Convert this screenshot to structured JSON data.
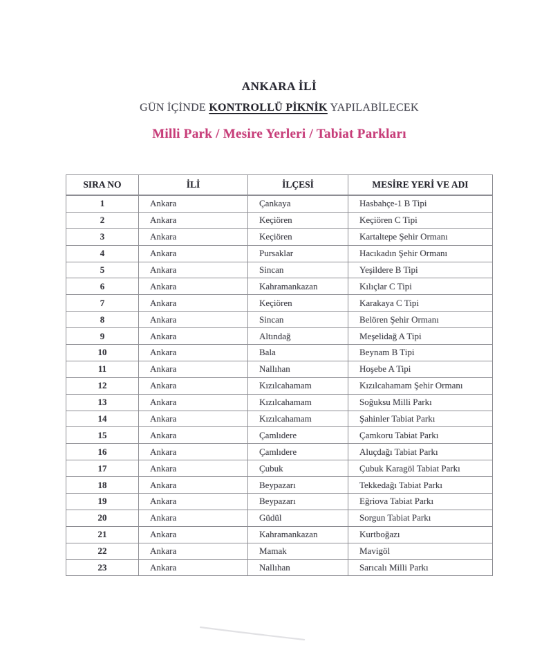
{
  "document": {
    "title": "ANKARA İLİ",
    "subtitle": {
      "prefix": "GÜN İÇİNDE ",
      "emphasis": "KONTROLLÜ PİKNİK",
      "suffix": " YAPILABİLECEK"
    },
    "subheading": "Milli Park / Mesire Yerleri / Tabiat Parkları",
    "colors": {
      "subheading_pink": "#c73d79",
      "body_text": "#43434b",
      "header_text": "#26262e",
      "border_gray": "#8d8d93"
    }
  },
  "table": {
    "columns": [
      "SIRA NO",
      "İLİ",
      "İLÇESİ",
      "MESİRE YERİ VE ADI"
    ],
    "rows": [
      [
        "1",
        "Ankara",
        "Çankaya",
        "Hasbahçe-1 B Tipi"
      ],
      [
        "2",
        "Ankara",
        "Keçiören",
        "Keçiören C Tipi"
      ],
      [
        "3",
        "Ankara",
        "Keçiören",
        "Kartaltepe Şehir Ormanı"
      ],
      [
        "4",
        "Ankara",
        "Pursaklar",
        "Hacıkadın Şehir Ormanı"
      ],
      [
        "5",
        "Ankara",
        "Sincan",
        "Yeşildere B Tipi"
      ],
      [
        "6",
        "Ankara",
        "Kahramankazan",
        "Kılıçlar C Tipi"
      ],
      [
        "7",
        "Ankara",
        "Keçiören",
        "Karakaya C Tipi"
      ],
      [
        "8",
        "Ankara",
        "Sincan",
        "Belören Şehir Ormanı"
      ],
      [
        "9",
        "Ankara",
        "Altındağ",
        "Meşelidağ A Tipi"
      ],
      [
        "10",
        "Ankara",
        "Bala",
        "Beynam B Tipi"
      ],
      [
        "11",
        "Ankara",
        "Nallıhan",
        "Hoşebe A Tipi"
      ],
      [
        "12",
        "Ankara",
        "Kızılcahamam",
        "Kızılcahamam Şehir Ormanı"
      ],
      [
        "13",
        "Ankara",
        "Kızılcahamam",
        "Soğuksu Milli Parkı"
      ],
      [
        "14",
        "Ankara",
        "Kızılcahamam",
        "Şahinler Tabiat Parkı"
      ],
      [
        "15",
        "Ankara",
        "Çamlıdere",
        "Çamkoru Tabiat Parkı"
      ],
      [
        "16",
        "Ankara",
        "Çamlıdere",
        "Aluçdağı Tabiat Parkı"
      ],
      [
        "17",
        "Ankara",
        "Çubuk",
        "Çubuk Karagöl Tabiat Parkı"
      ],
      [
        "18",
        "Ankara",
        "Beypazarı",
        "Tekkedağı Tabiat Parkı"
      ],
      [
        "19",
        "Ankara",
        "Beypazarı",
        "Eğriova Tabiat Parkı"
      ],
      [
        "20",
        "Ankara",
        "Güdül",
        "Sorgun Tabiat Parkı"
      ],
      [
        "21",
        "Ankara",
        "Kahramankazan",
        "Kurtboğazı"
      ],
      [
        "22",
        "Ankara",
        "Mamak",
        "Mavigöl"
      ],
      [
        "23",
        "Ankara",
        "Nallıhan",
        "Sarıcalı Milli Parkı"
      ]
    ]
  }
}
